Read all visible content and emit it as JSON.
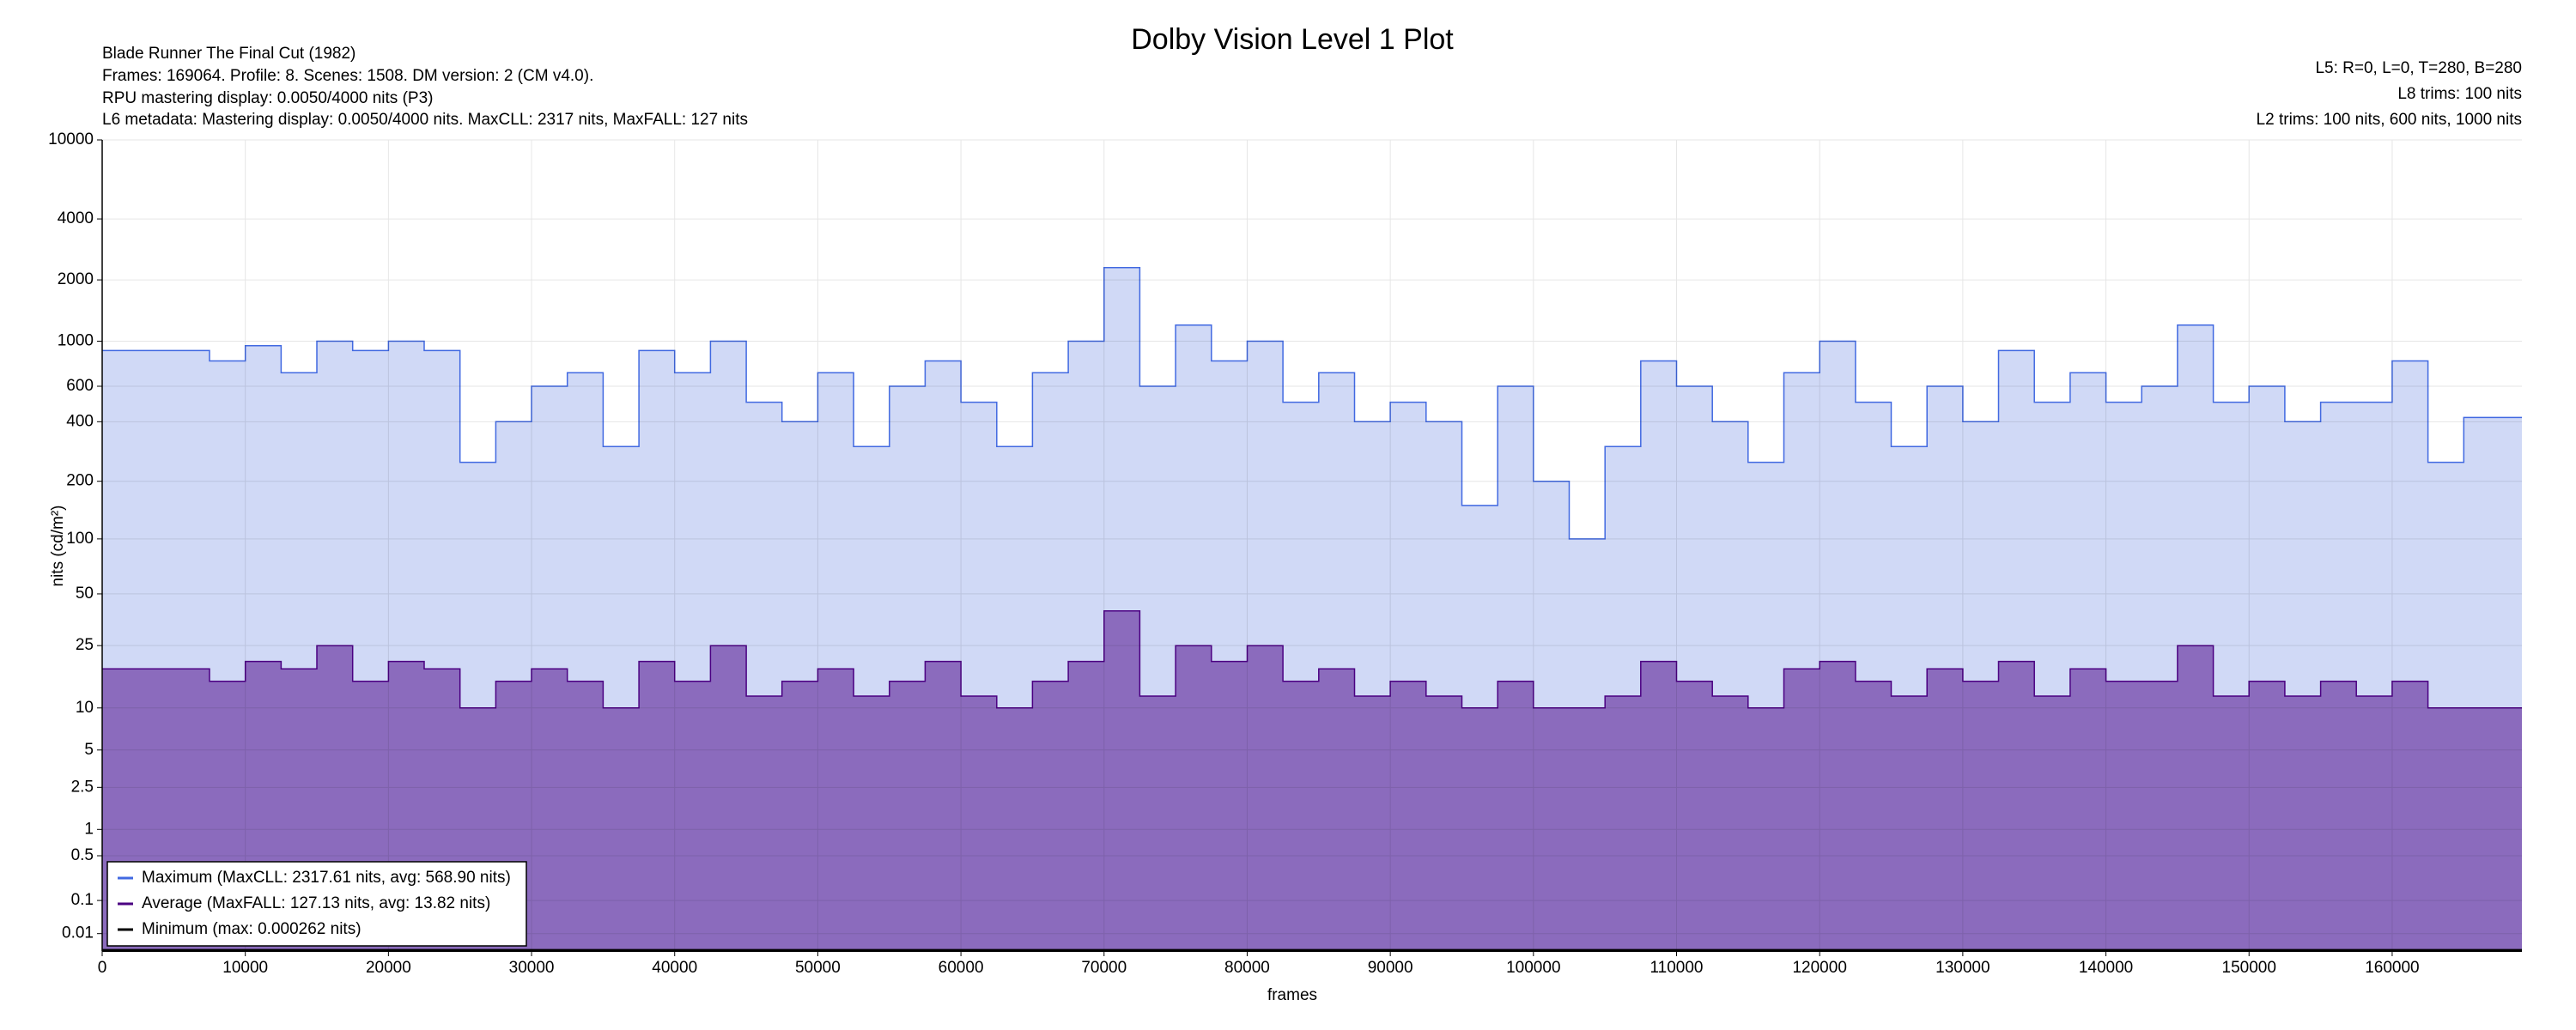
{
  "chart_data": {
    "type": "line",
    "title": "Dolby Vision Level 1 Plot",
    "info_left": [
      "Blade Runner The Final Cut (1982)",
      "Frames: 169064. Profile: 8. Scenes: 1508. DM version: 2 (CM v4.0).",
      "RPU mastering display: 0.0050/4000 nits  (P3)",
      "L6 metadata: Mastering display: 0.0050/4000 nits. MaxCLL: 2317 nits, MaxFALL: 127 nits"
    ],
    "info_right": [
      "L5: R=0, L=0, T=280, B=280",
      "L8 trims: 100 nits",
      "L2 trims: 100 nits, 600 nits, 1000 nits"
    ],
    "x_label": "frames",
    "y_label": "nits (cd/m²)",
    "yscale": "pq",
    "grid": true,
    "legend": "lower left",
    "step": true,
    "fill": true,
    "xlim": [
      0,
      169064
    ],
    "xticks": [
      0,
      10000,
      20000,
      30000,
      40000,
      50000,
      60000,
      70000,
      80000,
      90000,
      100000,
      110000,
      120000,
      130000,
      140000,
      150000,
      160000
    ],
    "ylim": [
      0,
      10000
    ],
    "yticks": [
      0.01,
      0.1,
      0.5,
      1,
      2.5,
      5,
      10,
      25,
      50,
      100,
      200,
      400,
      600,
      1000,
      2000,
      4000,
      10000
    ],
    "x": [
      0,
      2500,
      5000,
      7500,
      10000,
      12500,
      15000,
      17500,
      20000,
      22500,
      25000,
      27500,
      30000,
      32500,
      35000,
      37500,
      40000,
      42500,
      45000,
      47500,
      50000,
      52500,
      55000,
      57500,
      60000,
      62500,
      65000,
      67500,
      70000,
      72500,
      75000,
      77500,
      80000,
      82500,
      85000,
      87500,
      90000,
      92500,
      95000,
      97500,
      100000,
      102500,
      105000,
      107500,
      110000,
      112500,
      115000,
      117500,
      120000,
      122500,
      125000,
      127500,
      130000,
      132500,
      135000,
      137500,
      140000,
      142500,
      145000,
      147500,
      150000,
      152500,
      155000,
      157500,
      160000,
      162500,
      165000,
      167500
    ],
    "series": [
      {
        "name": "Maximum (MaxCLL: 2317.61 nits, avg: 568.90 nits)",
        "color": "#4169e1",
        "fill_color": "#d0d9f6",
        "values": [
          900,
          900,
          900,
          800,
          950,
          700,
          1000,
          900,
          1000,
          900,
          250,
          400,
          600,
          700,
          300,
          900,
          700,
          1000,
          500,
          400,
          700,
          300,
          600,
          800,
          500,
          300,
          700,
          1000,
          2300,
          600,
          1200,
          800,
          1000,
          500,
          700,
          400,
          500,
          400,
          150,
          600,
          200,
          100,
          300,
          800,
          600,
          400,
          250,
          700,
          1000,
          500,
          300,
          600,
          400,
          900,
          500,
          700,
          500,
          600,
          1200,
          500,
          600,
          400,
          500,
          500,
          800,
          250,
          420,
          420
        ]
      },
      {
        "name": "Average (MaxFALL: 127.13 nits, avg: 13.82 nits)",
        "color": "#4b0082",
        "fill_color": "#8b6bbd",
        "values": [
          18,
          18,
          18,
          15,
          20,
          18,
          25,
          15,
          20,
          18,
          10,
          15,
          18,
          15,
          10,
          20,
          15,
          25,
          12,
          15,
          18,
          12,
          15,
          20,
          12,
          10,
          15,
          20,
          40,
          12,
          25,
          20,
          25,
          15,
          18,
          12,
          15,
          12,
          10,
          15,
          10,
          10,
          12,
          20,
          15,
          12,
          10,
          18,
          20,
          15,
          12,
          18,
          15,
          20,
          12,
          18,
          15,
          15,
          25,
          12,
          15,
          12,
          15,
          12,
          15,
          10,
          10,
          10
        ]
      },
      {
        "name": "Minimum (max: 0.000262 nits)",
        "color": "#000000",
        "values": [
          0.0001,
          0.0001,
          0.0001,
          0.0001,
          0.0001,
          0.0001,
          0.0001,
          0.0001,
          0.0001,
          0.0001,
          0.0001,
          0.0001,
          0.0001,
          0.0001,
          0.0001,
          0.0001,
          0.0001,
          0.0001,
          0.0001,
          0.0001,
          0.0001,
          0.0001,
          0.0001,
          0.0001,
          0.0001,
          0.0001,
          0.0001,
          0.0001,
          0.0001,
          0.0001,
          0.0001,
          0.0001,
          0.0001,
          0.0001,
          0.0001,
          0.0001,
          0.0001,
          0.0001,
          0.0001,
          0.0001,
          0.0001,
          0.0001,
          0.0001,
          0.0001,
          0.0001,
          0.0001,
          0.0001,
          0.0001,
          0.0001,
          0.0001,
          0.0001,
          0.0001,
          0.0001,
          0.0001,
          0.0001,
          0.0001,
          0.0001,
          0.0001,
          0.0001,
          0.0001,
          0.0001,
          0.0001,
          0.0001,
          0.0001,
          0.0001,
          0.0001,
          0.0001,
          0.0001
        ]
      }
    ]
  }
}
